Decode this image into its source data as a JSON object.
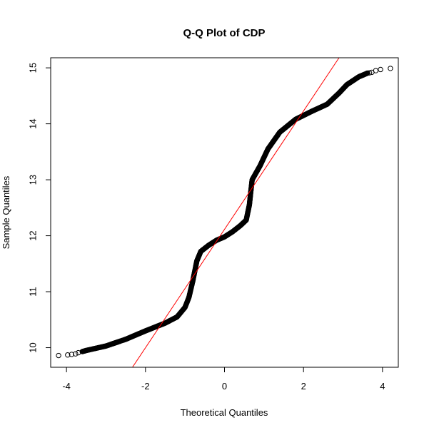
{
  "chart_data": {
    "type": "scatter",
    "title": "Q-Q Plot of CDP",
    "xlabel": "Theoretical Quantiles",
    "ylabel": "Sample Quantiles",
    "xlim": [
      -4.4,
      4.4
    ],
    "ylim": [
      9.65,
      15.18
    ],
    "xticks": [
      -4,
      -2,
      0,
      2,
      4
    ],
    "yticks": [
      10,
      11,
      12,
      13,
      14,
      15
    ],
    "xtick_labels": [
      "-4",
      "-2",
      "0",
      "2",
      "4"
    ],
    "ytick_labels": [
      "10",
      "11",
      "12",
      "13",
      "14",
      "15"
    ],
    "grid": false,
    "reference_line": {
      "color": "#ff0000",
      "x": [
        -2.33,
        2.9
      ],
      "y": [
        9.65,
        15.18
      ]
    },
    "point_color": "#000000",
    "curve": [
      [
        -4.2,
        9.86
      ],
      [
        -3.9,
        9.88
      ],
      [
        -3.7,
        9.9
      ],
      [
        -3.5,
        9.95
      ],
      [
        -3.0,
        10.03
      ],
      [
        -2.5,
        10.15
      ],
      [
        -2.0,
        10.3
      ],
      [
        -1.5,
        10.44
      ],
      [
        -1.2,
        10.55
      ],
      [
        -1.0,
        10.72
      ],
      [
        -0.9,
        10.9
      ],
      [
        -0.8,
        11.2
      ],
      [
        -0.7,
        11.55
      ],
      [
        -0.6,
        11.72
      ],
      [
        -0.4,
        11.83
      ],
      [
        -0.2,
        11.92
      ],
      [
        0.0,
        11.98
      ],
      [
        0.2,
        12.07
      ],
      [
        0.4,
        12.18
      ],
      [
        0.55,
        12.28
      ],
      [
        0.63,
        12.55
      ],
      [
        0.66,
        12.75
      ],
      [
        0.7,
        13.0
      ],
      [
        0.9,
        13.25
      ],
      [
        1.1,
        13.55
      ],
      [
        1.4,
        13.85
      ],
      [
        1.8,
        14.08
      ],
      [
        2.2,
        14.22
      ],
      [
        2.6,
        14.35
      ],
      [
        2.9,
        14.55
      ],
      [
        3.1,
        14.7
      ],
      [
        3.4,
        14.84
      ],
      [
        3.6,
        14.9
      ],
      [
        3.8,
        14.95
      ],
      [
        3.9,
        14.97
      ],
      [
        4.2,
        14.99
      ]
    ],
    "outliers": [
      [
        -4.2,
        9.86
      ],
      [
        -3.97,
        9.87
      ],
      [
        -3.87,
        9.88
      ],
      [
        -3.77,
        9.89
      ],
      [
        -3.7,
        9.91
      ],
      [
        3.67,
        14.91
      ],
      [
        3.73,
        14.92
      ],
      [
        3.83,
        14.95
      ],
      [
        3.95,
        14.97
      ],
      [
        4.2,
        14.99
      ]
    ]
  }
}
